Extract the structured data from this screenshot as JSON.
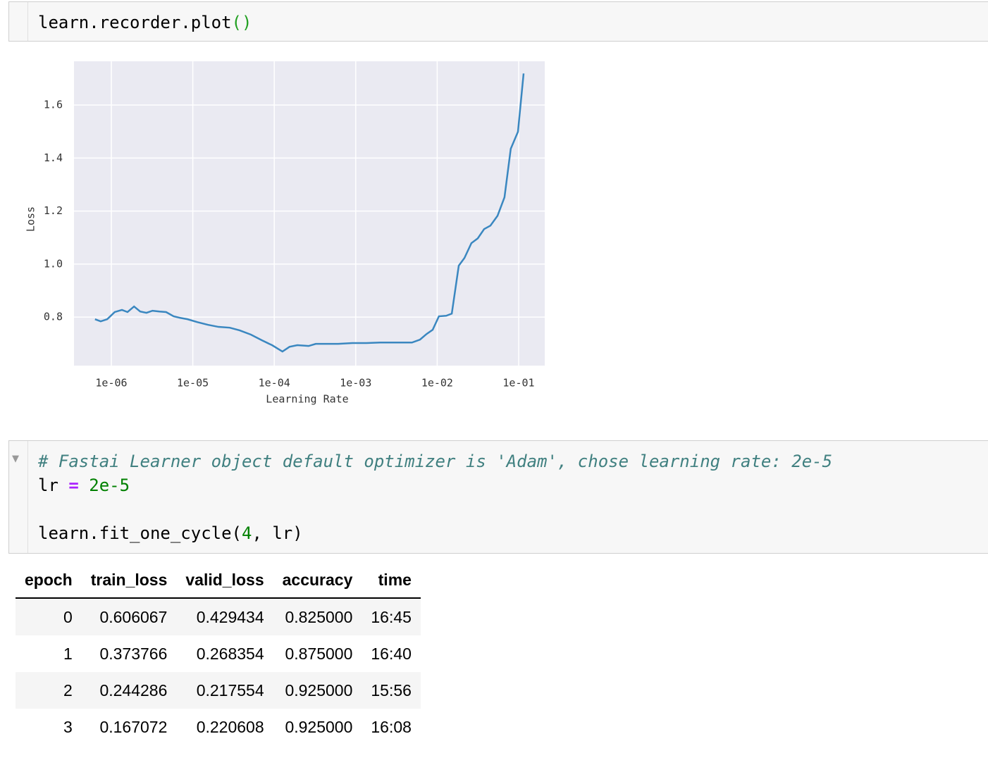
{
  "cells": [
    {
      "lines": [
        {
          "tokens": [
            {
              "text": "learn.recorder.plot",
              "color": "#000000"
            },
            {
              "text": "()",
              "color": "#22a022"
            }
          ]
        }
      ]
    },
    {
      "lines": [
        {
          "tokens": [
            {
              "text": "# Fastai Learner object default optimizer is 'Adam', chose learning rate: 2e-5",
              "color": "#408080",
              "italic": true
            }
          ]
        },
        {
          "tokens": [
            {
              "text": "lr ",
              "color": "#000000"
            },
            {
              "text": "=",
              "color": "#aa22ff",
              "bold": true
            },
            {
              "text": " 2e-5",
              "color": "#008000"
            }
          ]
        },
        {
          "tokens": [
            {
              "text": "learn.fit_one_cycle(",
              "color": "#000000"
            },
            {
              "text": "4",
              "color": "#008000"
            },
            {
              "text": ", lr)",
              "color": "#000000"
            }
          ],
          "blank_line_before": true
        }
      ]
    }
  ],
  "chart_data": {
    "type": "line",
    "xlabel": "Learning Rate",
    "ylabel": "Loss",
    "xscale": "log",
    "grid": true,
    "background": "#eaeaf2",
    "x": [
      6.3e-07,
      7.4e-07,
      8.9e-07,
      1.1e-06,
      1.35e-06,
      1.58e-06,
      1.9e-06,
      2.26e-06,
      2.7e-06,
      3.2e-06,
      3.9e-06,
      4.7e-06,
      5.8e-06,
      7e-06,
      8.6e-06,
      1.14e-05,
      1.53e-05,
      2.07e-05,
      2.84e-05,
      3.75e-05,
      5.16e-05,
      7.1e-05,
      9.4e-05,
      0.000126,
      0.000154,
      0.000192,
      0.000264,
      0.000323,
      0.00041,
      0.00061,
      0.00091,
      0.00135,
      0.002,
      0.003,
      0.0038,
      0.0049,
      0.00615,
      0.0074,
      0.0088,
      0.0105,
      0.0129,
      0.0151,
      0.0184,
      0.0216,
      0.0263,
      0.0315,
      0.0377,
      0.045,
      0.055,
      0.067,
      0.08,
      0.098,
      0.115
    ],
    "series": [
      {
        "color": "#3a87c0",
        "values": [
          0.792,
          0.784,
          0.792,
          0.819,
          0.827,
          0.819,
          0.84,
          0.821,
          0.816,
          0.824,
          0.821,
          0.819,
          0.803,
          0.797,
          0.792,
          0.781,
          0.771,
          0.763,
          0.76,
          0.75,
          0.734,
          0.712,
          0.694,
          0.67,
          0.688,
          0.694,
          0.691,
          0.699,
          0.699,
          0.699,
          0.702,
          0.702,
          0.704,
          0.704,
          0.704,
          0.704,
          0.715,
          0.736,
          0.752,
          0.803,
          0.805,
          0.813,
          0.994,
          1.023,
          1.079,
          1.097,
          1.132,
          1.145,
          1.182,
          1.252,
          1.435,
          1.499,
          1.719
        ]
      }
    ],
    "xlim": [
      3.48e-07,
      0.209
    ],
    "ylim": [
      0.617,
      1.765
    ],
    "xticks": [
      {
        "value": 1e-06,
        "label": "1e-06"
      },
      {
        "value": 1e-05,
        "label": "1e-05"
      },
      {
        "value": 0.0001,
        "label": "1e-04"
      },
      {
        "value": 0.001,
        "label": "1e-03"
      },
      {
        "value": 0.01,
        "label": "1e-02"
      },
      {
        "value": 0.1,
        "label": "1e-01"
      }
    ],
    "yticks": [
      0.8,
      {
        "value": 1,
        "label": "1.0"
      },
      1.2,
      1.4,
      1.6
    ]
  },
  "table": {
    "columns": [
      "epoch",
      "train_loss",
      "valid_loss",
      "accuracy",
      "time"
    ],
    "rows": [
      [
        "0",
        "0.606067",
        "0.429434",
        "0.825000",
        "16:45"
      ],
      [
        "1",
        "0.373766",
        "0.268354",
        "0.875000",
        "16:40"
      ],
      [
        "2",
        "0.244286",
        "0.217554",
        "0.925000",
        "15:56"
      ],
      [
        "3",
        "0.167072",
        "0.220608",
        "0.925000",
        "16:08"
      ]
    ]
  }
}
